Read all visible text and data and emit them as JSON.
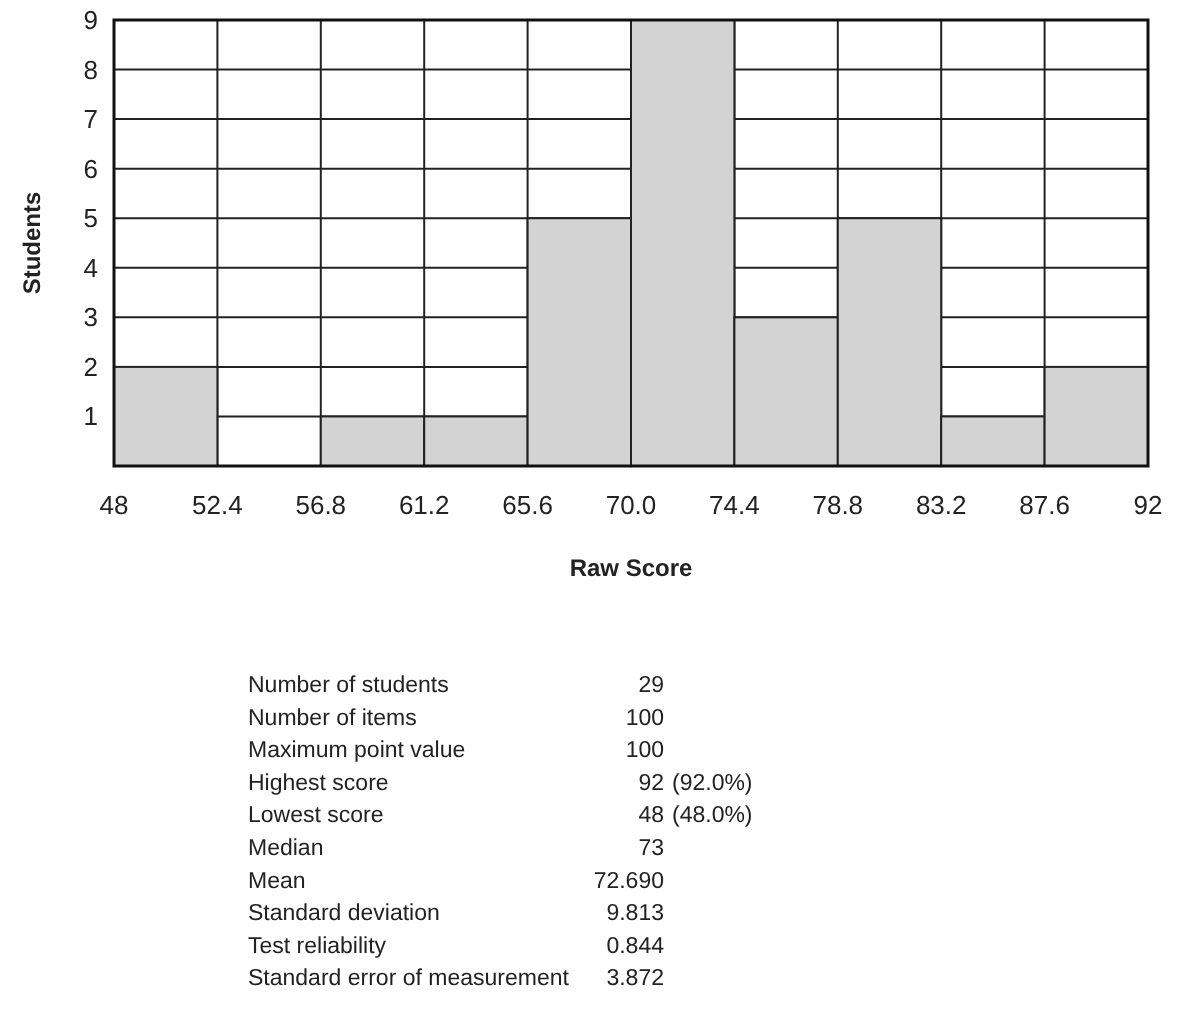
{
  "chart_data": {
    "type": "histogram",
    "xlabel": "Raw Score",
    "ylabel": "Students",
    "bins": [
      48,
      52.4,
      56.8,
      61.2,
      65.6,
      70.0,
      74.4,
      78.8,
      83.2,
      87.6,
      92
    ],
    "values": [
      2,
      0,
      1,
      1,
      5,
      9,
      3,
      5,
      1,
      2
    ],
    "color": "#d3d3d3",
    "xlim": [
      48,
      92
    ],
    "xticks": [
      48,
      52.4,
      56.8,
      61.2,
      65.6,
      {
        "value": 70,
        "label": "70.0"
      },
      74.4,
      78.8,
      83.2,
      87.6,
      92
    ],
    "ylim": [
      0,
      9
    ],
    "yticks": [
      1,
      2,
      3,
      4,
      5,
      6,
      7,
      8,
      9
    ],
    "grid": true,
    "annotations": [
      "Number of students",
      "29",
      "Number of items",
      "100",
      "Maximum point value",
      "100",
      "Highest score",
      "92 (92.0%)",
      "Lowest score",
      "48 (48.0%)",
      "Median",
      "73",
      "Mean",
      "72.690",
      "Standard deviation",
      "9.813",
      "Test reliability",
      "0.844",
      "Standard error of measurement",
      "3.872"
    ]
  }
}
